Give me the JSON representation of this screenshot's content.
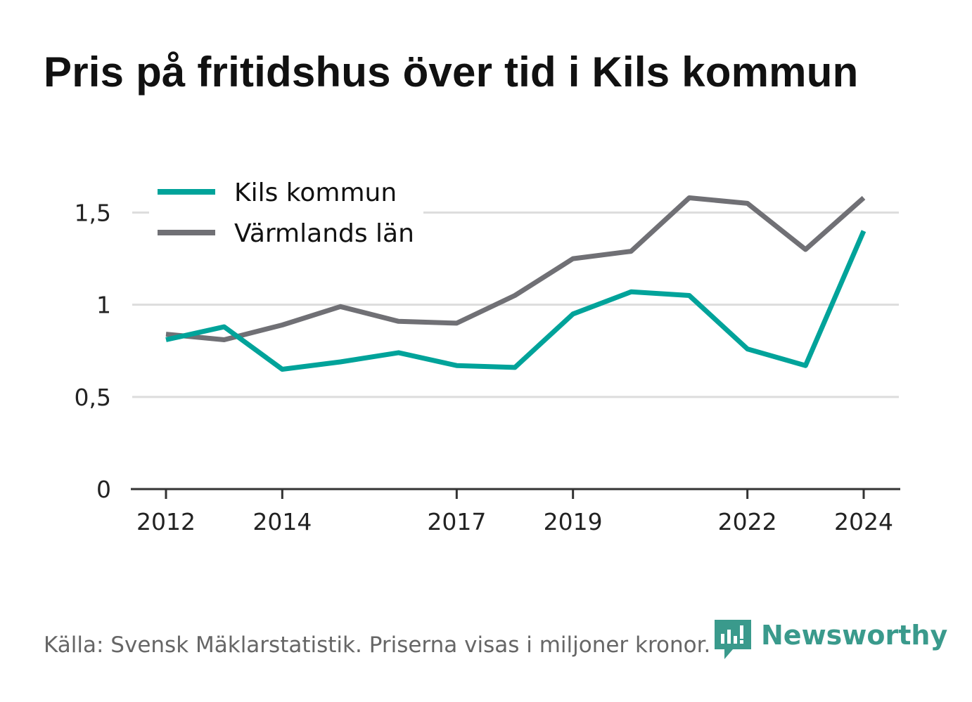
{
  "title": "Pris på fritidshus över tid i Kils kommun",
  "source": "Källa: Svensk Mäklarstatistik. Priserna visas i miljoner kronor.",
  "brand": {
    "name": "Newsworthy",
    "color": "#3a9a8c",
    "icon": "bar-chart-speech-bubble-icon"
  },
  "chart_data": {
    "type": "line",
    "x": [
      2012,
      2013,
      2014,
      2015,
      2016,
      2017,
      2018,
      2019,
      2020,
      2021,
      2022,
      2023,
      2024
    ],
    "x_tick_labels": [
      "2012",
      "2014",
      "2017",
      "2019",
      "2022",
      "2024"
    ],
    "x_tick_values": [
      2012,
      2014,
      2017,
      2019,
      2022,
      2024
    ],
    "y_tick_labels": [
      "0",
      "0,5",
      "1",
      "1,5"
    ],
    "y_tick_values": [
      0,
      0.5,
      1,
      1.5
    ],
    "ylim": [
      0,
      1.62
    ],
    "grid": true,
    "legend_position": "top-left",
    "series": [
      {
        "name": "Kils kommun",
        "color": "#00a39a",
        "values": [
          0.81,
          0.88,
          0.65,
          0.69,
          0.74,
          0.67,
          0.66,
          0.95,
          1.07,
          1.05,
          0.76,
          0.67,
          1.4
        ]
      },
      {
        "name": "Värmlands län",
        "color": "#707075",
        "values": [
          0.84,
          0.81,
          0.89,
          0.99,
          0.91,
          0.9,
          1.05,
          1.25,
          1.29,
          1.58,
          1.55,
          1.3,
          1.58
        ]
      }
    ]
  }
}
